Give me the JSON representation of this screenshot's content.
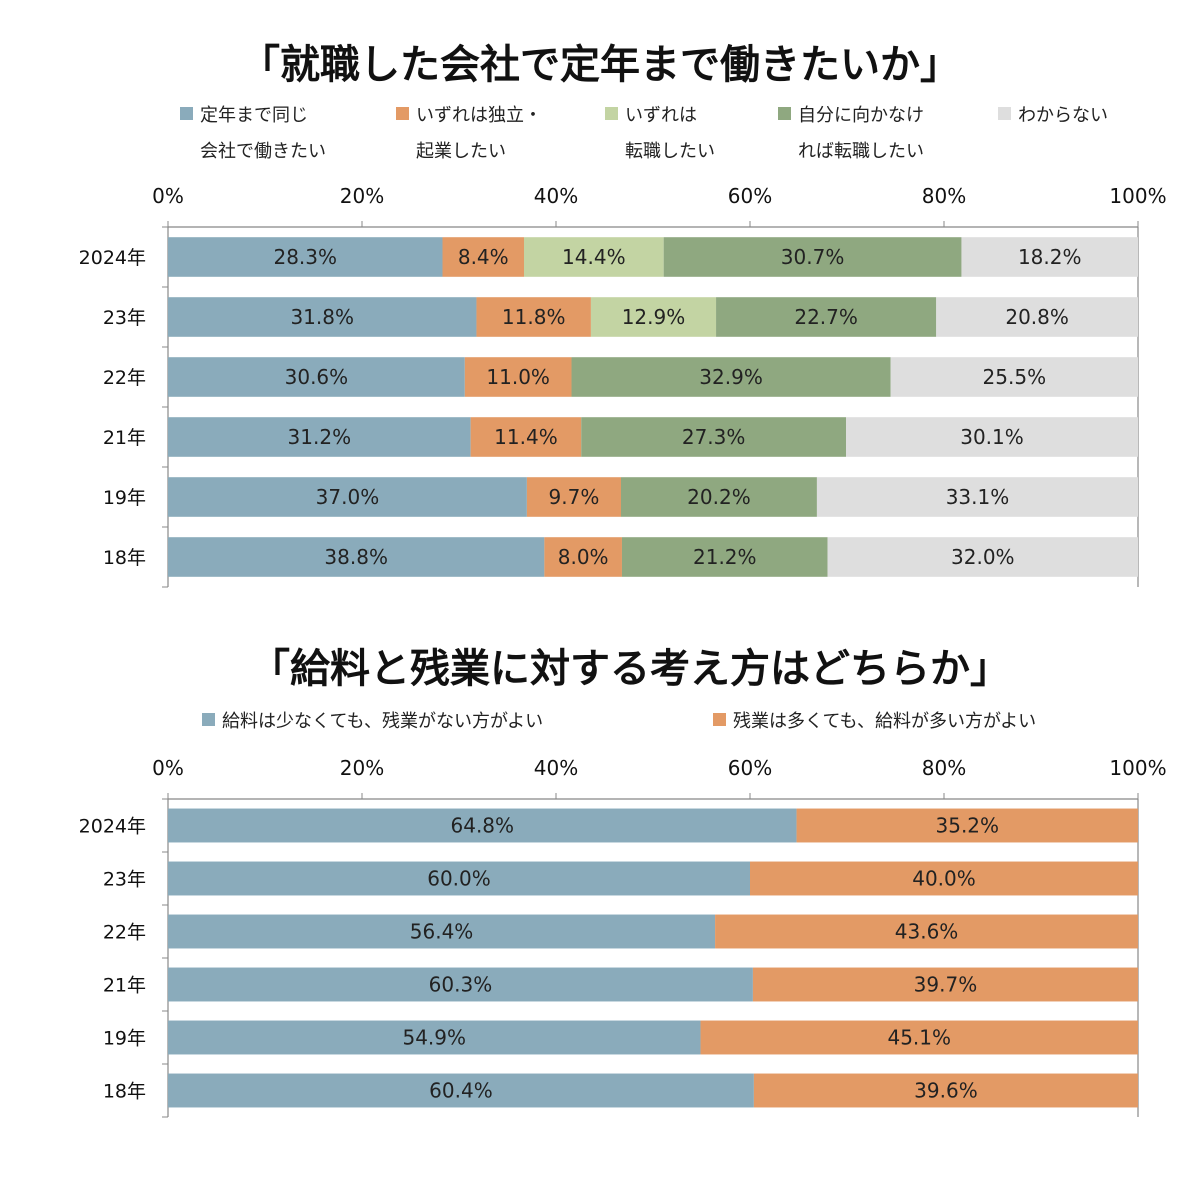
{
  "chart_data": [
    {
      "type": "bar",
      "orientation": "horizontal",
      "stacked": true,
      "title": "「就職した会社で定年まで働きたいか」",
      "categories": [
        "2024年",
        "23年",
        "22年",
        "21年",
        "19年",
        "18年"
      ],
      "series": [
        {
          "name": "定年まで同じ\n会社で働きたい",
          "color": "#8aabbb",
          "values": [
            28.3,
            31.8,
            30.6,
            31.2,
            37.0,
            38.8
          ]
        },
        {
          "name": "いずれは独立・\n起業したい",
          "color": "#e39a65",
          "values": [
            8.4,
            11.8,
            11.0,
            11.4,
            9.7,
            8.0
          ]
        },
        {
          "name": "いずれは\n転職したい",
          "color": "#c3d4a3",
          "values": [
            14.4,
            12.9,
            null,
            null,
            null,
            null
          ]
        },
        {
          "name": "自分に向かなけ\nれば転職したい",
          "color": "#8fa880",
          "values": [
            30.7,
            22.7,
            32.9,
            27.3,
            20.2,
            21.2
          ]
        },
        {
          "name": "わからない",
          "color": "#dedede",
          "values": [
            18.2,
            20.8,
            25.5,
            30.1,
            33.1,
            32.0
          ]
        }
      ],
      "data_labels": [
        [
          "28.3%",
          "8.4%",
          "14.4%",
          "30.7%",
          "18.2%"
        ],
        [
          "31.8%",
          "11.8%",
          "12.9%",
          "22.7%",
          "20.8%"
        ],
        [
          "30.6%",
          "11.0%",
          "",
          "32.9%",
          "25.5%"
        ],
        [
          "31.2%",
          "11.4%",
          "",
          "27.3%",
          "30.1%"
        ],
        [
          "37.0%",
          "9.7%",
          "",
          "20.2%",
          "33.1%"
        ],
        [
          "38.8%",
          "8.0%",
          "",
          "21.2%",
          "32.0%"
        ]
      ],
      "xlim": [
        0,
        100
      ],
      "xticks": [
        "0%",
        "20%",
        "40%",
        "60%",
        "80%",
        "100%"
      ],
      "legend_position": "top",
      "grid": false
    },
    {
      "type": "bar",
      "orientation": "horizontal",
      "stacked": true,
      "title": "「給料と残業に対する考え方はどちらか」",
      "categories": [
        "2024年",
        "23年",
        "22年",
        "21年",
        "19年",
        "18年"
      ],
      "series": [
        {
          "name": "給料は少なくても、残業がない方がよい",
          "color": "#8aabbb",
          "values": [
            64.8,
            60.0,
            56.4,
            60.3,
            54.9,
            60.4
          ]
        },
        {
          "name": "残業は多くても、給料が多い方がよい",
          "color": "#e39a65",
          "values": [
            35.2,
            40.0,
            43.6,
            39.7,
            45.1,
            39.6
          ]
        }
      ],
      "data_labels": [
        [
          "64.8%",
          "35.2%"
        ],
        [
          "60.0%",
          "40.0%"
        ],
        [
          "56.4%",
          "43.6%"
        ],
        [
          "60.3%",
          "39.7%"
        ],
        [
          "54.9%",
          "45.1%"
        ],
        [
          "60.4%",
          "39.6%"
        ]
      ],
      "xlim": [
        0,
        100
      ],
      "xticks": [
        "0%",
        "20%",
        "40%",
        "60%",
        "80%",
        "100%"
      ],
      "legend_position": "top",
      "grid": false
    }
  ]
}
